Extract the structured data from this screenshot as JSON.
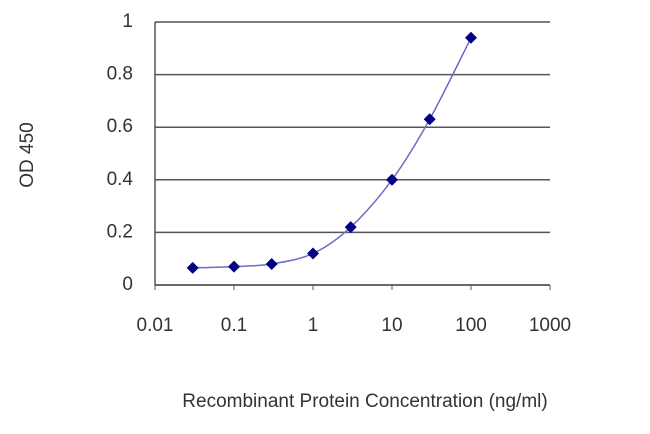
{
  "chart_data": {
    "type": "scatter",
    "x_label": "Recombinant Protein Concentration (ng/ml)",
    "y_label": "OD 450",
    "x": [
      0.03,
      0.1,
      0.3,
      1,
      3,
      10,
      30,
      100
    ],
    "series": [
      {
        "color": "#000080",
        "line_color": "#6b6bc8",
        "values": [
          0.065,
          0.07,
          0.08,
          0.12,
          0.22,
          0.4,
          0.63,
          0.94
        ]
      }
    ],
    "xlim": [
      0.01,
      1000
    ],
    "xticks": [
      0.01,
      0.1,
      1,
      10,
      100,
      1000
    ],
    "xscale": "log",
    "ylim": [
      0,
      1
    ],
    "yticks": [
      0,
      0.2,
      0.4,
      0.6,
      0.8,
      1
    ],
    "grid": true
  }
}
